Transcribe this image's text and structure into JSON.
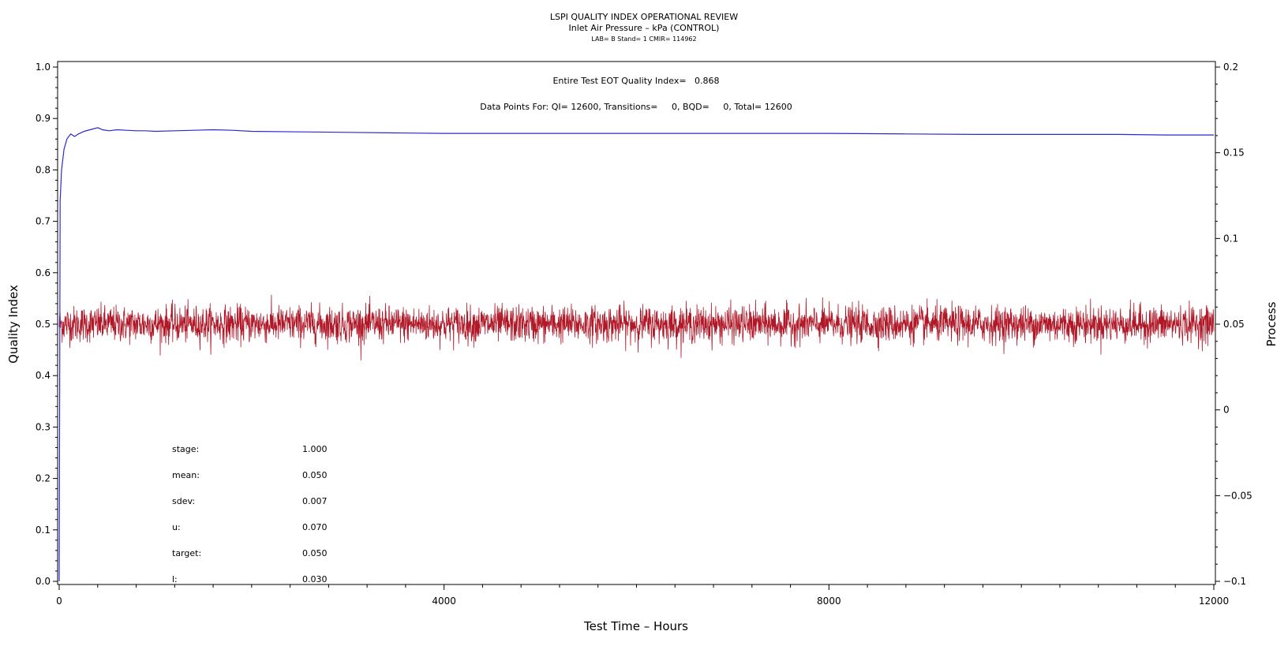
{
  "header": {
    "title": "LSPI QUALITY INDEX OPERATIONAL REVIEW",
    "subtitle": "Inlet Air Pressure – kPa (CONTROL)",
    "info": "LAB= B Stand= 1 CMIR= 114962"
  },
  "annotations": {
    "eot_quality_index": "Entire Test EOT Quality Index=   0.868",
    "data_points": "Data Points For: QI= 12600, Transitions=     0, BQD=     0, Total= 12600"
  },
  "stats": [
    {
      "label": "stage:",
      "value": "1.000"
    },
    {
      "label": "mean:",
      "value": "0.050"
    },
    {
      "label": "sdev:",
      "value": "0.007"
    },
    {
      "label": "u:",
      "value": "0.070"
    },
    {
      "label": "target:",
      "value": "0.050"
    },
    {
      "label": "l:",
      "value": "0.030"
    }
  ],
  "colors": {
    "quality_index_line": "#2a2ad0",
    "process_line": "#b01828",
    "axis": "#000000"
  },
  "chart_data": {
    "type": "line",
    "title": "LSPI QUALITY INDEX OPERATIONAL REVIEW",
    "xlabel": "Test Time – Hours",
    "ylabel": "Quality Index",
    "y2label": "Process",
    "xlim": [
      0,
      12000
    ],
    "ylim": [
      0,
      1.0
    ],
    "y2lim": [
      -0.1,
      0.2
    ],
    "x_ticks": [
      "0",
      "4000",
      "8000",
      "12000"
    ],
    "y_ticks": [
      "0.0",
      "0.1",
      "0.2",
      "0.3",
      "0.4",
      "0.5",
      "0.6",
      "0.7",
      "0.8",
      "0.9",
      "1.0"
    ],
    "y2_ticks": [
      "−0.1",
      "−0.05",
      "0",
      "0.05",
      "0.1",
      "0.15",
      "0.2"
    ],
    "grid": false,
    "series": [
      {
        "axis": "left",
        "x": [
          0,
          10,
          25,
          50,
          80,
          120,
          160,
          200,
          260,
          320,
          400,
          450,
          520,
          600,
          700,
          800,
          900,
          1000,
          1200,
          1400,
          1600,
          1800,
          2000,
          2500,
          3000,
          3500,
          4000,
          5000,
          6000,
          7000,
          8000,
          8800,
          9500,
          10000,
          10500,
          11000,
          11500,
          12000
        ],
        "values": [
          0.0,
          0.74,
          0.8,
          0.84,
          0.86,
          0.87,
          0.865,
          0.87,
          0.875,
          0.878,
          0.882,
          0.878,
          0.876,
          0.878,
          0.877,
          0.876,
          0.876,
          0.875,
          0.876,
          0.877,
          0.878,
          0.877,
          0.875,
          0.874,
          0.873,
          0.872,
          0.871,
          0.871,
          0.871,
          0.871,
          0.871,
          0.87,
          0.869,
          0.869,
          0.869,
          0.869,
          0.868,
          0.868
        ]
      },
      {
        "axis": "right",
        "x": [
          0,
          1000,
          2000,
          3000,
          4000,
          5000,
          6000,
          7000,
          8000,
          9000,
          10000,
          11000,
          12000
        ],
        "values": [
          0.05,
          0.05,
          0.05,
          0.05,
          0.05,
          0.05,
          0.05,
          0.05,
          0.05,
          0.05,
          0.05,
          0.05,
          0.05
        ],
        "mean": 0.05,
        "sdev": 0.007
      }
    ]
  }
}
